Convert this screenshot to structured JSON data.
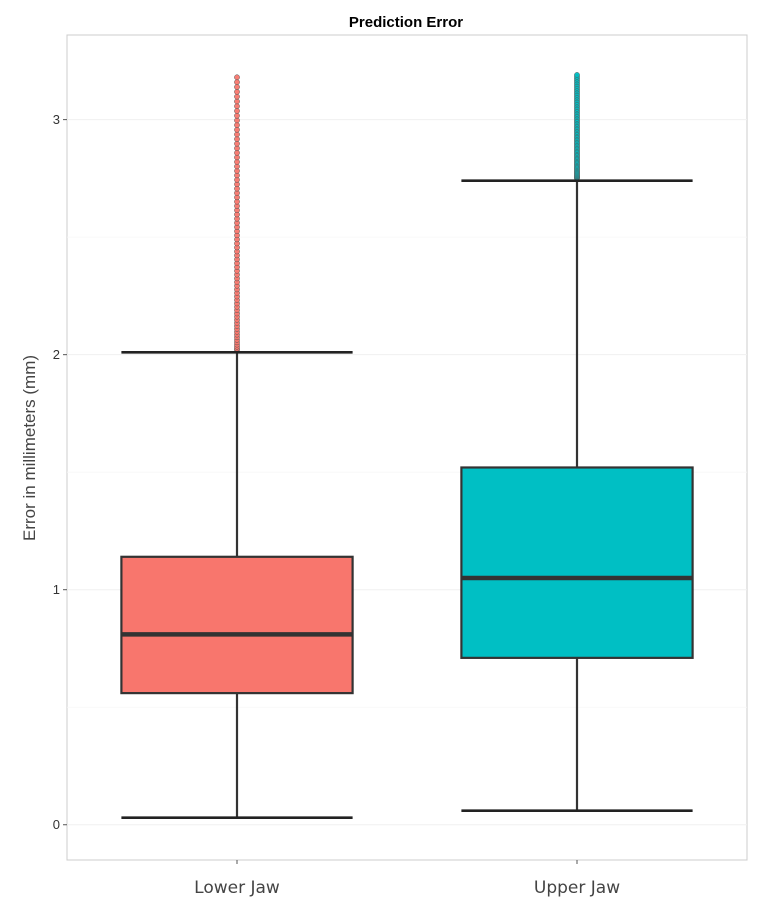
{
  "chart_data": {
    "type": "boxplot",
    "title": "Prediction Error",
    "xlabel": "",
    "ylabel": "Error in millimeters (mm)",
    "ylim": [
      -0.15,
      3.36
    ],
    "yticks": [
      0,
      1,
      2,
      3
    ],
    "grid": true,
    "categories": [
      "Lower Jaw",
      "Upper Jaw"
    ],
    "colors": [
      "#f8766d",
      "#00bfc4"
    ],
    "boxes": [
      {
        "name": "Lower Jaw",
        "whisker_low": 0.03,
        "q1": 0.56,
        "median": 0.81,
        "q3": 1.14,
        "whisker_high": 2.01,
        "outliers_range": [
          2.02,
          3.18
        ]
      },
      {
        "name": "Upper Jaw",
        "whisker_low": 0.06,
        "q1": 0.71,
        "median": 1.05,
        "q3": 1.52,
        "whisker_high": 2.74,
        "outliers_range": [
          2.75,
          3.19
        ]
      }
    ]
  }
}
